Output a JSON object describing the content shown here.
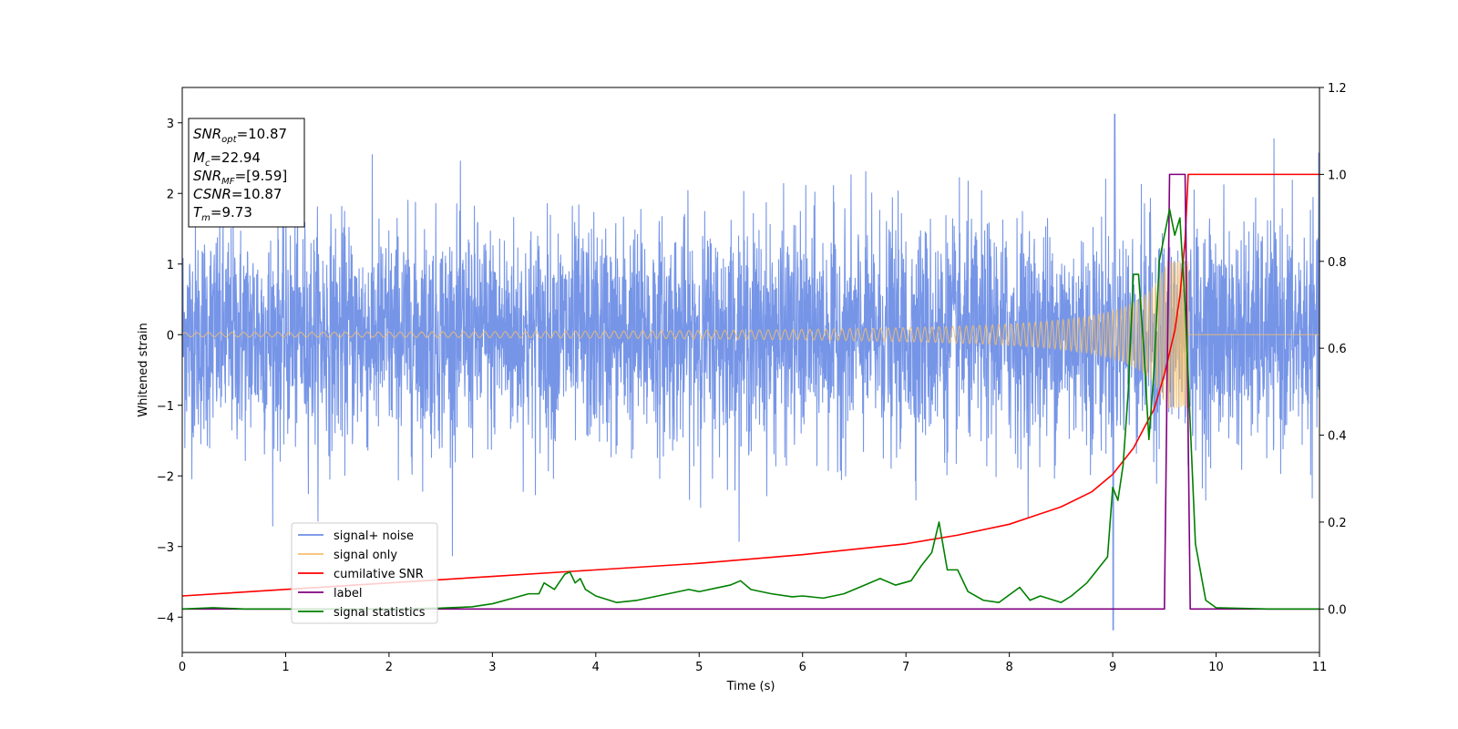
{
  "chart_data": {
    "type": "line",
    "xlabel": "Time (s)",
    "ylabel_left": "Whitened strain",
    "ylabel_right": "",
    "xlim": [
      0,
      11
    ],
    "ylim_left": [
      -4.5,
      3.5
    ],
    "ylim_right": [
      -0.1,
      1.2
    ],
    "x_ticks": [
      0,
      1,
      2,
      3,
      4,
      5,
      6,
      7,
      8,
      9,
      10,
      11
    ],
    "x_tick_labels": [
      "0",
      "1",
      "2",
      "3",
      "4",
      "5",
      "6",
      "7",
      "8",
      "9",
      "10",
      "11"
    ],
    "y_left_ticks": [
      3,
      2,
      1,
      0,
      -1,
      -2,
      -3,
      -4
    ],
    "y_left_tick_labels": [
      "3",
      "2",
      "1",
      "0",
      "−1",
      "−2",
      "−3",
      "−4"
    ],
    "y_right_ticks": [
      1.2,
      1.0,
      0.8,
      0.6,
      0.4,
      0.2,
      0.0
    ],
    "y_right_tick_labels": [
      "1.2",
      "1.0",
      "0.8",
      "0.6",
      "0.4",
      "0.2",
      "0.0"
    ],
    "grid": false,
    "legend_position": "lower-left",
    "info_box": {
      "snr_opt": {
        "sym": "SNR",
        "sub": "opt",
        "text": "=10.87"
      },
      "mc": {
        "sym": "M",
        "sub": "c",
        "text": "=22.94"
      },
      "snr_mf": {
        "sym": "SNR",
        "sub": "MF",
        "text": "=[9.59]"
      },
      "csnr": {
        "sym": "CSNR",
        "sub": "",
        "text": "=10.87"
      },
      "tm": {
        "sym": "T",
        "sub": "m",
        "text": "=9.73"
      }
    },
    "series": [
      {
        "name": "signal+ noise",
        "axis": "left",
        "color": "#6f8fe6",
        "kind": "noise",
        "std": 0.78,
        "peak_max": 3.12,
        "peak_min": -4.18
      },
      {
        "name": "signal only",
        "axis": "left",
        "color": "#f5c16c",
        "kind": "chirp",
        "t_merge": 9.73,
        "base_amp": 0.03,
        "peak_amp": 1.05
      },
      {
        "name": "cumilative SNR",
        "axis": "right",
        "color": "#ff0000",
        "x": [
          0,
          1,
          2,
          3,
          4,
          5,
          6,
          7,
          7.5,
          8,
          8.5,
          8.8,
          9.0,
          9.2,
          9.4,
          9.5,
          9.6,
          9.65,
          9.7,
          9.73,
          11
        ],
        "y": [
          0.03,
          0.045,
          0.06,
          0.075,
          0.09,
          0.105,
          0.125,
          0.15,
          0.17,
          0.195,
          0.235,
          0.27,
          0.31,
          0.37,
          0.46,
          0.54,
          0.64,
          0.72,
          0.85,
          1.0,
          1.0
        ]
      },
      {
        "name": "label",
        "axis": "right",
        "color": "#800080",
        "x": [
          0,
          9.5,
          9.55,
          9.7,
          9.75,
          11
        ],
        "y": [
          0,
          0,
          1.0,
          1.0,
          0,
          0
        ]
      },
      {
        "name": "signal statistics",
        "axis": "right",
        "color": "#008000",
        "x": [
          0,
          0.3,
          0.6,
          1.0,
          1.5,
          2.0,
          2.5,
          2.8,
          3.0,
          3.2,
          3.35,
          3.45,
          3.5,
          3.6,
          3.7,
          3.75,
          3.8,
          3.85,
          3.9,
          4.0,
          4.2,
          4.4,
          4.6,
          4.8,
          4.9,
          5.0,
          5.2,
          5.3,
          5.4,
          5.5,
          5.7,
          5.9,
          6.0,
          6.2,
          6.4,
          6.6,
          6.75,
          6.9,
          7.05,
          7.15,
          7.25,
          7.32,
          7.4,
          7.5,
          7.6,
          7.75,
          7.9,
          8.1,
          8.2,
          8.3,
          8.5,
          8.6,
          8.75,
          8.85,
          8.95,
          9.0,
          9.05,
          9.1,
          9.15,
          9.2,
          9.25,
          9.3,
          9.35,
          9.4,
          9.45,
          9.5,
          9.55,
          9.6,
          9.65,
          9.7,
          9.8,
          9.9,
          10.0,
          10.5,
          11.0
        ],
        "y": [
          0.0,
          0.003,
          0.0,
          0.0,
          0.0,
          0.0,
          0.002,
          0.005,
          0.012,
          0.025,
          0.035,
          0.035,
          0.06,
          0.045,
          0.08,
          0.085,
          0.06,
          0.07,
          0.045,
          0.03,
          0.015,
          0.02,
          0.03,
          0.04,
          0.045,
          0.04,
          0.05,
          0.055,
          0.065,
          0.045,
          0.035,
          0.028,
          0.03,
          0.025,
          0.035,
          0.055,
          0.07,
          0.055,
          0.065,
          0.1,
          0.13,
          0.2,
          0.09,
          0.09,
          0.04,
          0.02,
          0.015,
          0.05,
          0.02,
          0.03,
          0.015,
          0.03,
          0.06,
          0.09,
          0.12,
          0.28,
          0.25,
          0.33,
          0.5,
          0.77,
          0.77,
          0.6,
          0.39,
          0.55,
          0.8,
          0.86,
          0.92,
          0.86,
          0.9,
          0.7,
          0.15,
          0.02,
          0.003,
          0.0,
          0.0
        ]
      }
    ]
  }
}
